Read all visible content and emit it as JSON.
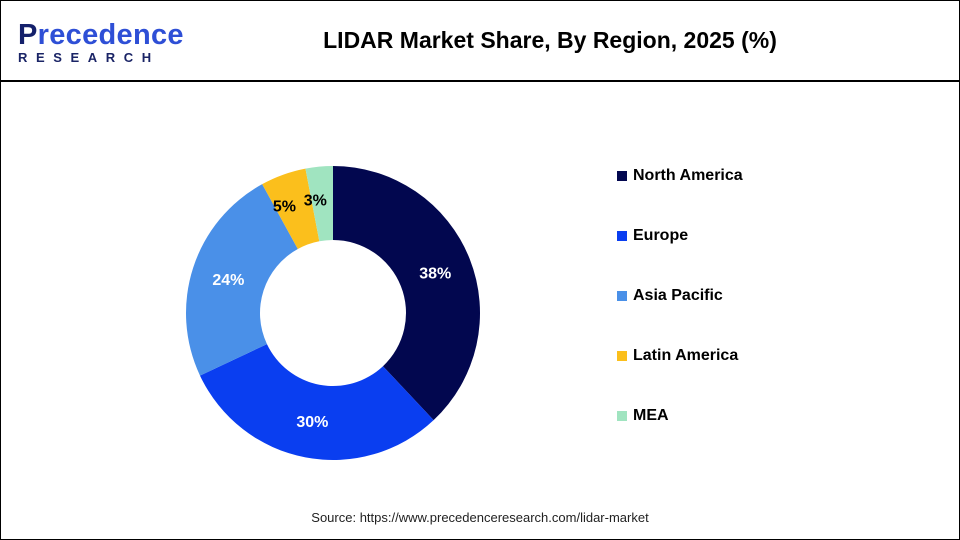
{
  "header": {
    "logo_main_first": "P",
    "logo_main_rest": "recedence",
    "logo_sub": "RESEARCH",
    "title": "LIDAR Market Share, By Region, 2025 (%)"
  },
  "footer": {
    "source": "Source: https://www.precedenceresearch.com/lidar-market"
  },
  "chart_data": {
    "type": "pie",
    "variant": "donut",
    "title": "LIDAR Market Share, By Region, 2025 (%)",
    "start_angle": "top, clockwise",
    "legend_position": "right",
    "categories": [
      "North America",
      "Europe",
      "Asia Pacific",
      "Latin America",
      "MEA"
    ],
    "values": [
      38,
      30,
      24,
      5,
      3
    ],
    "labels": [
      "38%",
      "30%",
      "24%",
      "5%",
      "3%"
    ],
    "colors": [
      "#02074f",
      "#0a3ef0",
      "#4a90e8",
      "#fbbf1c",
      "#a0e4c0"
    ],
    "label_colors": [
      "#ffffff",
      "#ffffff",
      "#ffffff",
      "#000000",
      "#000000"
    ],
    "unit": "%"
  }
}
